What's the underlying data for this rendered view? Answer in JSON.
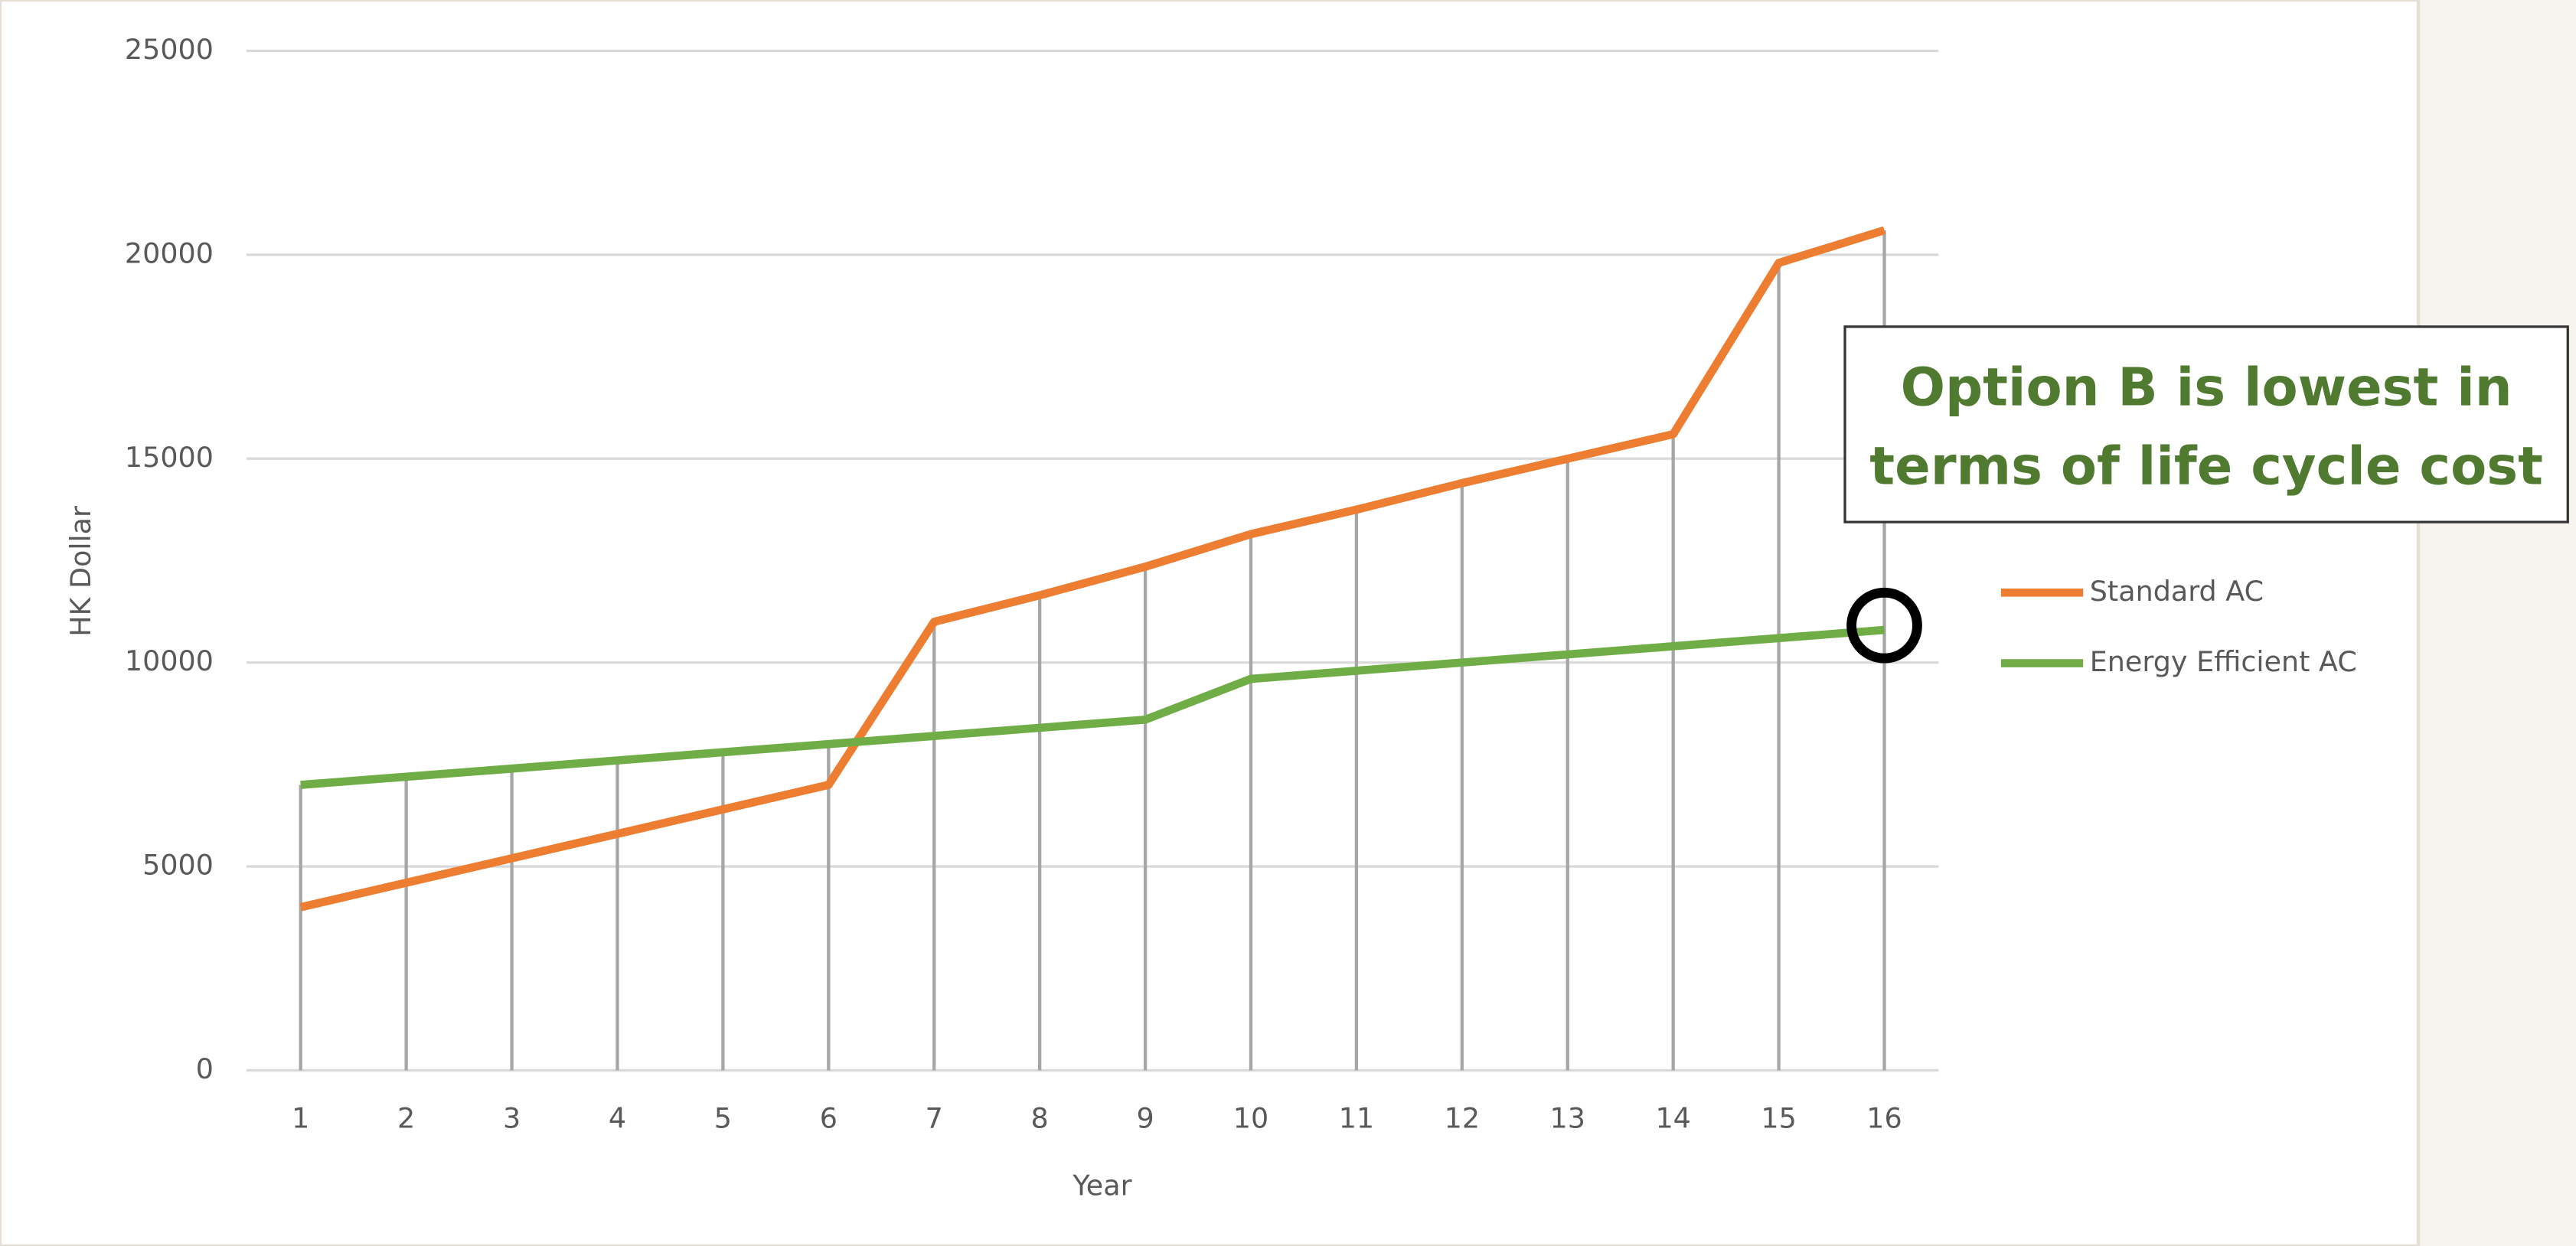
{
  "chart_data": {
    "type": "line",
    "x_label": "Year",
    "y_label": "HK Dollar",
    "categories": [
      "1",
      "2",
      "3",
      "4",
      "5",
      "6",
      "7",
      "8",
      "9",
      "10",
      "11",
      "12",
      "13",
      "14",
      "15",
      "16"
    ],
    "series": [
      {
        "name": "Standard AC",
        "color": "#ed7d31",
        "values": [
          4000,
          4600,
          5200,
          5800,
          6400,
          7000,
          11000,
          11650,
          12350,
          13150,
          13750,
          14400,
          15000,
          15600,
          19800,
          20600
        ]
      },
      {
        "name": "Energy Efficient AC",
        "color": "#70ad47",
        "values": [
          7000,
          7200,
          7400,
          7600,
          7800,
          8000,
          8200,
          8400,
          8600,
          9600,
          9800,
          10000,
          10200,
          10400,
          10600,
          10800
        ]
      }
    ],
    "ylim": [
      0,
      25000
    ],
    "yticks": [
      0,
      5000,
      10000,
      15000,
      20000,
      25000
    ],
    "grid": true,
    "drop_lines": true,
    "legend": "right",
    "annotation": [
      "Option B is lowest in",
      "terms of life cycle cost"
    ]
  }
}
